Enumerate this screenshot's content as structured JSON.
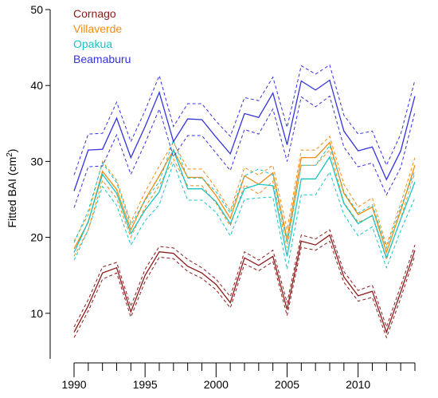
{
  "chart_data": {
    "type": "line",
    "title": "",
    "xlabel": "",
    "ylabel_main": "Fitted BAI (cm",
    "ylabel_sup": "2",
    "ylabel_end": ")",
    "xlim": [
      1990,
      2014
    ],
    "ylim": [
      4,
      50
    ],
    "x_ticks": [
      1990,
      1995,
      2000,
      2005,
      2010
    ],
    "y_ticks": [
      10,
      20,
      30,
      40,
      50
    ],
    "grid": false,
    "legend_position": "top-left",
    "x": [
      1990,
      1991,
      1992,
      1993,
      1994,
      1995,
      1996,
      1997,
      1998,
      1999,
      2000,
      2001,
      2002,
      2003,
      2004,
      2005,
      2006,
      2007,
      2008,
      2009,
      2010,
      2011,
      2012,
      2013,
      2014
    ],
    "series": [
      {
        "name": "Cornago",
        "color": "#8b1a1a",
        "values": [
          7.5,
          11,
          15.3,
          16,
          10.2,
          15,
          18.1,
          17.9,
          16.2,
          15.3,
          13.8,
          11.4,
          17.3,
          16.3,
          17.5,
          10.5,
          19.5,
          19,
          20.3,
          14.8,
          12.3,
          12.9,
          7.5,
          12.8,
          18.3
        ],
        "upper": [
          8.2,
          11.8,
          16.1,
          16.7,
          10.9,
          15.8,
          18.8,
          18.6,
          17.1,
          16,
          14.5,
          12.2,
          18.1,
          17,
          18.3,
          11.4,
          20.3,
          19.8,
          21,
          15.5,
          13,
          13.7,
          8.2,
          13.6,
          19
        ],
        "lower": [
          6.8,
          10.3,
          14.5,
          15.3,
          9.5,
          14.2,
          17.4,
          17.2,
          15.5,
          14.6,
          13.1,
          10.7,
          16.5,
          15.6,
          16.8,
          9.7,
          18.7,
          18.3,
          19.5,
          14.1,
          11.6,
          12.1,
          6.8,
          12,
          17.6
        ]
      },
      {
        "name": "Villaverde",
        "color": "#f08c14",
        "values": [
          18.5,
          22,
          28.7,
          26.3,
          21,
          25,
          28.1,
          31.5,
          27.9,
          27.9,
          25.5,
          22.5,
          28.1,
          27,
          28.5,
          19.8,
          30.5,
          30.5,
          32.5,
          25.8,
          23,
          24,
          18,
          23.5,
          29.5
        ],
        "upper": [
          19.5,
          23,
          30,
          27.5,
          22,
          26,
          29.4,
          32.5,
          29,
          29,
          26.5,
          23.5,
          29.2,
          28.2,
          29.5,
          21,
          31.5,
          31.5,
          33.3,
          27,
          24,
          25.2,
          18.9,
          24.5,
          30.5
        ],
        "lower": [
          17.5,
          21,
          27.5,
          25.1,
          20,
          24,
          26.8,
          30.3,
          26.8,
          26.8,
          24.5,
          21.5,
          26.9,
          25.7,
          27.4,
          18.6,
          29.5,
          29.5,
          31.5,
          24.6,
          22,
          22.8,
          17.1,
          22.5,
          28.5
        ]
      },
      {
        "name": "Opakua",
        "color": "#19c4c4",
        "values": [
          18,
          22.1,
          28.3,
          25.8,
          20.5,
          23.6,
          26,
          31.5,
          26.4,
          26.4,
          24.7,
          21.8,
          26.4,
          27,
          26.8,
          17.5,
          27.7,
          27.7,
          30.6,
          24.5,
          21.8,
          22.9,
          17.3,
          22.4,
          27.3
        ],
        "upper": [
          19.3,
          23.5,
          29.8,
          27.2,
          21.6,
          24.9,
          27.3,
          32.8,
          27.8,
          27.8,
          26,
          23.2,
          28.1,
          29,
          28.2,
          19.3,
          29.5,
          29.5,
          32.1,
          26,
          23.2,
          24.3,
          18.6,
          23.9,
          28.8
        ],
        "lower": [
          17,
          21,
          26.7,
          24.2,
          19,
          22.2,
          24.3,
          29.8,
          24.9,
          24.9,
          23.3,
          20.2,
          25,
          25.2,
          25.3,
          15.8,
          25.6,
          25.6,
          28.6,
          23,
          20.2,
          21.4,
          16,
          20.9,
          25.2
        ]
      },
      {
        "name": "Beamaburu",
        "color": "#3333dd",
        "values": [
          26.1,
          31.5,
          31.6,
          35.7,
          30.5,
          34.6,
          39.1,
          32.6,
          35.6,
          35.5,
          33.2,
          31,
          36.3,
          35.8,
          39,
          32.2,
          40.6,
          39.4,
          40.7,
          34,
          31.4,
          31.9,
          27.6,
          31.4,
          38.6
        ],
        "upper": [
          28.2,
          33.6,
          33.7,
          37.8,
          32.6,
          36.7,
          41.3,
          34.6,
          37.6,
          37.6,
          35.3,
          33.3,
          38.4,
          38,
          41.1,
          34.5,
          42.6,
          41.5,
          42.7,
          36.1,
          33.6,
          34,
          29.5,
          33.6,
          40.7
        ],
        "lower": [
          23.9,
          29.3,
          29.4,
          33.5,
          28.3,
          32.4,
          36.9,
          30.6,
          33.4,
          33.4,
          31.1,
          28.8,
          34.2,
          33.6,
          36.9,
          30,
          38.5,
          37.2,
          38.6,
          31.9,
          29.3,
          29.8,
          25.6,
          29.2,
          36.5
        ]
      }
    ]
  }
}
